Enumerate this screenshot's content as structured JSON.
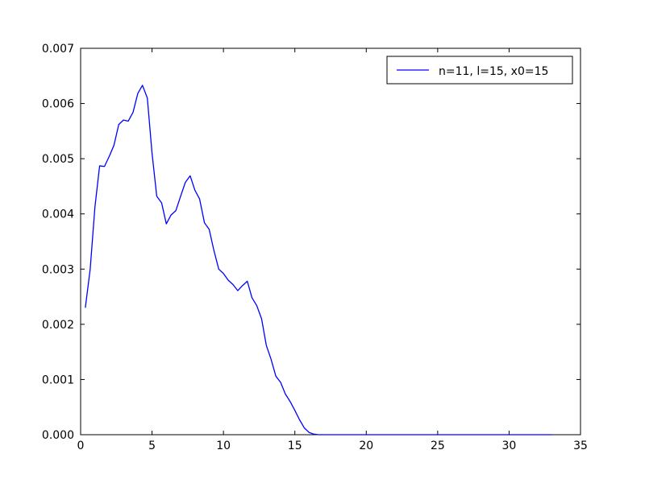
{
  "chart_data": {
    "type": "line",
    "title": "",
    "xlabel": "",
    "ylabel": "",
    "xlim": [
      0,
      35
    ],
    "ylim": [
      0,
      0.007
    ],
    "x_ticks": [
      0,
      5,
      10,
      15,
      20,
      25,
      30,
      35
    ],
    "y_ticks": [
      0.0,
      0.001,
      0.002,
      0.003,
      0.004,
      0.005,
      0.006,
      0.007
    ],
    "x_tick_labels": [
      "0",
      "5",
      "10",
      "15",
      "20",
      "25",
      "30",
      "35"
    ],
    "y_tick_labels": [
      "0.000",
      "0.001",
      "0.002",
      "0.003",
      "0.004",
      "0.005",
      "0.006",
      "0.007"
    ],
    "grid": false,
    "legend_position": "top-right",
    "series": [
      {
        "name": "n=11, l=15, x0=15",
        "color": "#0000ff",
        "x": [
          0.33,
          0.67,
          1.0,
          1.33,
          1.67,
          2.0,
          2.33,
          2.67,
          3.0,
          3.33,
          3.67,
          4.0,
          4.33,
          4.67,
          5.0,
          5.33,
          5.67,
          6.0,
          6.33,
          6.67,
          7.0,
          7.33,
          7.67,
          8.0,
          8.33,
          8.67,
          9.0,
          9.33,
          9.67,
          10.0,
          10.33,
          10.67,
          11.0,
          11.33,
          11.67,
          12.0,
          12.33,
          12.67,
          13.0,
          13.33,
          13.67,
          14.0,
          14.33,
          14.67,
          15.0,
          15.33,
          15.67,
          16.0,
          16.33,
          16.67,
          17.0,
          18.0,
          20.0,
          22.0,
          24.0,
          26.0,
          28.0,
          30.0,
          32.0,
          33.0
        ],
        "y": [
          0.0023,
          0.003,
          0.00412,
          0.00487,
          0.00486,
          0.00504,
          0.00524,
          0.00562,
          0.0057,
          0.00568,
          0.00584,
          0.00618,
          0.00633,
          0.0061,
          0.0051,
          0.00432,
          0.0042,
          0.00382,
          0.00398,
          0.00406,
          0.00432,
          0.00457,
          0.00469,
          0.00443,
          0.00427,
          0.00384,
          0.00372,
          0.00334,
          0.003,
          0.00292,
          0.0028,
          0.00272,
          0.00261,
          0.0027,
          0.00278,
          0.00248,
          0.00234,
          0.0021,
          0.00162,
          0.00137,
          0.00106,
          0.00095,
          0.00074,
          0.0006,
          0.00044,
          0.00027,
          0.00012,
          4e-05,
          1e-05,
          0.0,
          0.0,
          0.0,
          0.0,
          0.0,
          0.0,
          0.0,
          0.0,
          0.0,
          0.0,
          0.0
        ]
      }
    ]
  }
}
